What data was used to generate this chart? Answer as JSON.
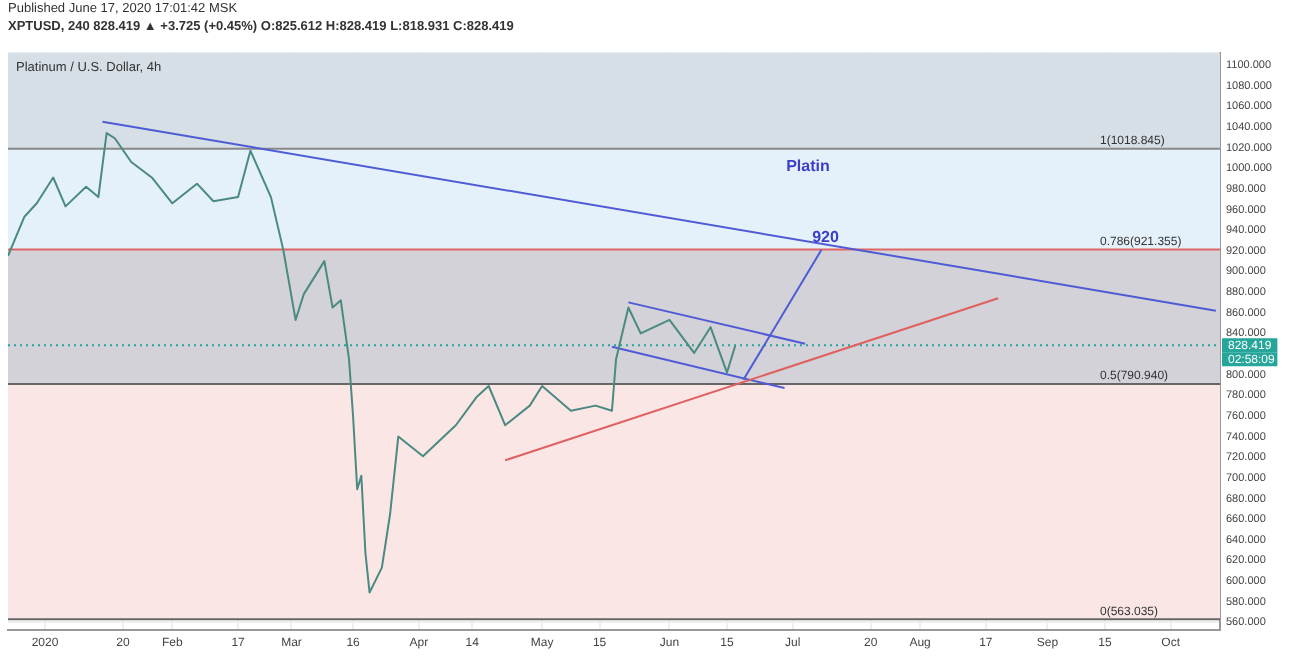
{
  "chart_data": {
    "type": "line",
    "title": "Platinum / U.S. Dollar, 4h",
    "annotations": [
      "Published June 17, 2020 17:01:42 MSK",
      "XPTUSD, 240 828.419 ▲ +3.725 (+0.45%) O:825.612 H:828.419 L:818.931 C:828.419",
      "Platin",
      "02:58:09",
      {
        "text": "920",
        "x": "2020-07-08",
        "y": 921
      }
    ],
    "xlim": [
      "2019-12-23",
      "2020-10-13"
    ],
    "xticks": [
      {
        "value": "2020-01-01",
        "label": "2020"
      },
      {
        "value": "2020-01-20",
        "label": "20"
      },
      {
        "value": "2020-02-01",
        "label": "Feb"
      },
      {
        "value": "2020-02-17",
        "label": "17"
      },
      {
        "value": "2020-03-01",
        "label": "Mar"
      },
      {
        "value": "2020-03-16",
        "label": "16"
      },
      {
        "value": "2020-04-01",
        "label": "Apr"
      },
      {
        "value": "2020-04-14",
        "label": "14"
      },
      {
        "value": "2020-05-01",
        "label": "May"
      },
      {
        "value": "2020-05-15",
        "label": "15"
      },
      {
        "value": "2020-06-01",
        "label": "Jun"
      },
      {
        "value": "2020-06-15",
        "label": "15"
      },
      {
        "value": "2020-07-01",
        "label": "Jul"
      },
      {
        "value": "2020-07-20",
        "label": "20"
      },
      {
        "value": "2020-08-01",
        "label": "Aug"
      },
      {
        "value": "2020-08-17",
        "label": "17"
      },
      {
        "value": "2020-09-01",
        "label": "Sep"
      },
      {
        "value": "2020-09-15",
        "label": "15"
      },
      {
        "value": "2020-10-01",
        "label": "Oct"
      }
    ],
    "ylim": [
      553,
      1112
    ],
    "yticks": [
      {
        "value": 560,
        "label": "560.000"
      },
      {
        "value": 580,
        "label": "580.000"
      },
      {
        "value": 600,
        "label": "600.000"
      },
      {
        "value": 620,
        "label": "620.000"
      },
      {
        "value": 640,
        "label": "640.000"
      },
      {
        "value": 660,
        "label": "660.000"
      },
      {
        "value": 680,
        "label": "680.000"
      },
      {
        "value": 700,
        "label": "700.000"
      },
      {
        "value": 720,
        "label": "720.000"
      },
      {
        "value": 740,
        "label": "740.000"
      },
      {
        "value": 760,
        "label": "760.000"
      },
      {
        "value": 780,
        "label": "780.000"
      },
      {
        "value": 800,
        "label": "800.000"
      },
      {
        "value": 840,
        "label": "840.000"
      },
      {
        "value": 860,
        "label": "860.000"
      },
      {
        "value": 880,
        "label": "880.000"
      },
      {
        "value": 900,
        "label": "900.000"
      },
      {
        "value": 920,
        "label": "920.000"
      },
      {
        "value": 940,
        "label": "940.000"
      },
      {
        "value": 960,
        "label": "960.000"
      },
      {
        "value": 980,
        "label": "980.000"
      },
      {
        "value": 1000,
        "label": "1000.000"
      },
      {
        "value": 1020,
        "label": "1020.000"
      },
      {
        "value": 1040,
        "label": "1040.000"
      },
      {
        "value": 1060,
        "label": "1060.000"
      },
      {
        "value": 1080,
        "label": "1080.000"
      },
      {
        "value": 1100,
        "label": "1100.000"
      }
    ],
    "grid": true,
    "legend": false,
    "bands": [
      {
        "axis": "y",
        "from": 1018.845,
        "to": 1112,
        "color": "#d6dee6"
      },
      {
        "axis": "y",
        "from": 921.355,
        "to": 1018.845,
        "color": "#e4f1fa"
      },
      {
        "axis": "y",
        "from": 790.94,
        "to": 921.355,
        "color": "#d2d2d8"
      },
      {
        "axis": "y",
        "from": 563.035,
        "to": 790.94,
        "color": "#fbe6e6"
      }
    ],
    "ref_lines": [
      {
        "axis": "y",
        "value": 1018.845,
        "label": "1(1018.845)",
        "color": "#888888",
        "line_style": "solid"
      },
      {
        "axis": "y",
        "value": 921.355,
        "label": "0.786(921.355)",
        "color": "#e06666",
        "line_style": "solid"
      },
      {
        "axis": "y",
        "value": 790.94,
        "label": "0.5(790.940)",
        "color": "#666666",
        "line_style": "solid"
      },
      {
        "axis": "y",
        "value": 563.035,
        "label": "0(563.035)",
        "color": "#666666",
        "line_style": "solid"
      },
      {
        "axis": "y",
        "value": 828.419,
        "label": "828.419",
        "color": "#26a69a",
        "line_style": "dotted"
      }
    ],
    "series": [
      {
        "color": "#4a8a80",
        "x": [
          "2019-12-23",
          "2019-12-27",
          "2019-12-30",
          "2020-01-03",
          "2020-01-06",
          "2020-01-11",
          "2020-01-14",
          "2020-01-16",
          "2020-01-18",
          "2020-01-22",
          "2020-01-27",
          "2020-02-01",
          "2020-02-07",
          "2020-02-11",
          "2020-02-17",
          "2020-02-20",
          "2020-02-25",
          "2020-02-28",
          "2020-03-02",
          "2020-03-04",
          "2020-03-09",
          "2020-03-11",
          "2020-03-13",
          "2020-03-15",
          "2020-03-16",
          "2020-03-17",
          "2020-03-18",
          "2020-03-19",
          "2020-03-20",
          "2020-03-23",
          "2020-03-25",
          "2020-03-27",
          "2020-04-02",
          "2020-04-10",
          "2020-04-15",
          "2020-04-18",
          "2020-04-22",
          "2020-04-28",
          "2020-05-01",
          "2020-05-08",
          "2020-05-14",
          "2020-05-18",
          "2020-05-19",
          "2020-05-22",
          "2020-05-25",
          "2020-06-01",
          "2020-06-07",
          "2020-06-11",
          "2020-06-15",
          "2020-06-17"
        ],
        "values": [
          915,
          953,
          966,
          991,
          963,
          982,
          972,
          1034,
          1029,
          1006,
          991,
          966,
          985,
          968,
          972,
          1017,
          972,
          921,
          853,
          878,
          910,
          865,
          872,
          815,
          759,
          689,
          702,
          627,
          589,
          613,
          665,
          740,
          721,
          751,
          778,
          789,
          751,
          770,
          789,
          765,
          770,
          765,
          815,
          865,
          840,
          853,
          821,
          846,
          802,
          828
        ]
      },
      {
        "color": "#4f5bd5",
        "x": [
          "2020-01-15",
          "2020-10-12"
        ],
        "values": [
          1045,
          862
        ]
      },
      {
        "color": "#e06060",
        "x": [
          "2020-04-22",
          "2020-08-20"
        ],
        "values": [
          717,
          874
        ]
      },
      {
        "color": "#4f5bd5",
        "x": [
          "2020-05-22",
          "2020-07-04"
        ],
        "values": [
          870,
          830
        ]
      },
      {
        "color": "#4f5bd5",
        "x": [
          "2020-05-18",
          "2020-06-29"
        ],
        "values": [
          827,
          787
        ]
      },
      {
        "color": "#4f5bd5",
        "x": [
          "2020-06-19",
          "2020-07-08"
        ],
        "values": [
          795,
          921
        ]
      }
    ]
  }
}
